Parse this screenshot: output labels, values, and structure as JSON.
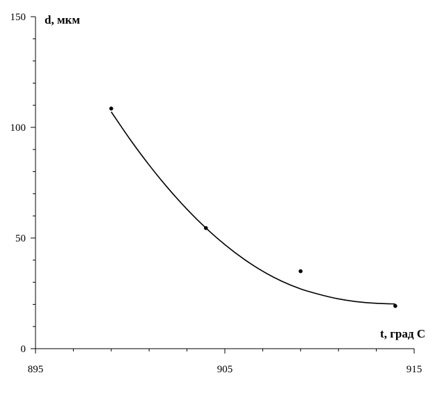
{
  "chart_data": {
    "type": "scatter",
    "x_axis": {
      "label": "t, град С",
      "range": [
        895,
        915
      ],
      "ticks": [
        895,
        905,
        915
      ],
      "minor_step": 2
    },
    "y_axis": {
      "label": "d, мкм",
      "range": [
        0,
        150
      ],
      "ticks": [
        0,
        50,
        100,
        150
      ],
      "minor_step": 10
    },
    "grid": false,
    "legend": "none",
    "series": [
      {
        "kind": "points",
        "points": [
          {
            "x": 899,
            "y": 108.5
          },
          {
            "x": 904,
            "y": 54.5
          },
          {
            "x": 909,
            "y": 35
          },
          {
            "x": 914,
            "y": 19.3
          }
        ]
      },
      {
        "kind": "trendline",
        "points": [
          {
            "x": 899,
            "y": 107
          },
          {
            "x": 900,
            "y": 94.5
          },
          {
            "x": 901,
            "y": 83
          },
          {
            "x": 902,
            "y": 72.5
          },
          {
            "x": 903,
            "y": 63
          },
          {
            "x": 904,
            "y": 54.5
          },
          {
            "x": 905,
            "y": 47
          },
          {
            "x": 906,
            "y": 40.5
          },
          {
            "x": 907,
            "y": 35
          },
          {
            "x": 908,
            "y": 30.5
          },
          {
            "x": 909,
            "y": 27
          },
          {
            "x": 910,
            "y": 24.5
          },
          {
            "x": 911,
            "y": 22.5
          },
          {
            "x": 912,
            "y": 21.2
          },
          {
            "x": 913,
            "y": 20.5
          },
          {
            "x": 914,
            "y": 20.2
          }
        ]
      }
    ],
    "colors": {
      "axis": "#000000",
      "line": "#000000",
      "point": "#000000"
    }
  }
}
